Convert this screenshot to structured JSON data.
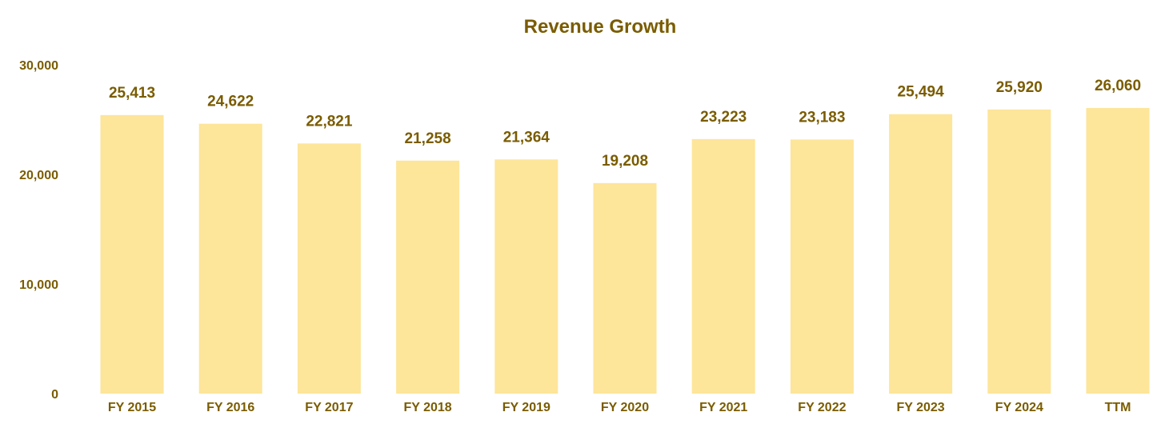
{
  "chart_data": {
    "type": "bar",
    "title": "Revenue Growth",
    "xlabel": "",
    "ylabel": "",
    "categories": [
      "FY 2015",
      "FY 2016",
      "FY 2017",
      "FY 2018",
      "FY 2019",
      "FY 2020",
      "FY 2021",
      "FY 2022",
      "FY 2023",
      "FY 2024",
      "TTM"
    ],
    "values": [
      25413,
      24622,
      22821,
      21258,
      21364,
      19208,
      23223,
      23183,
      25494,
      25920,
      26060
    ],
    "value_labels": [
      "25,413",
      "24,622",
      "22,821",
      "21,258",
      "21,364",
      "19,208",
      "23,223",
      "23,183",
      "25,494",
      "25,920",
      "26,060"
    ],
    "ylim": [
      0,
      30000
    ],
    "yticks": [
      0,
      10000,
      20000,
      30000
    ],
    "ytick_labels": [
      "0",
      "10,000",
      "20,000",
      "30,000"
    ],
    "grid": false,
    "legend": "none"
  },
  "colors": {
    "bar": "#fde59a",
    "text": "#7a5c00"
  }
}
